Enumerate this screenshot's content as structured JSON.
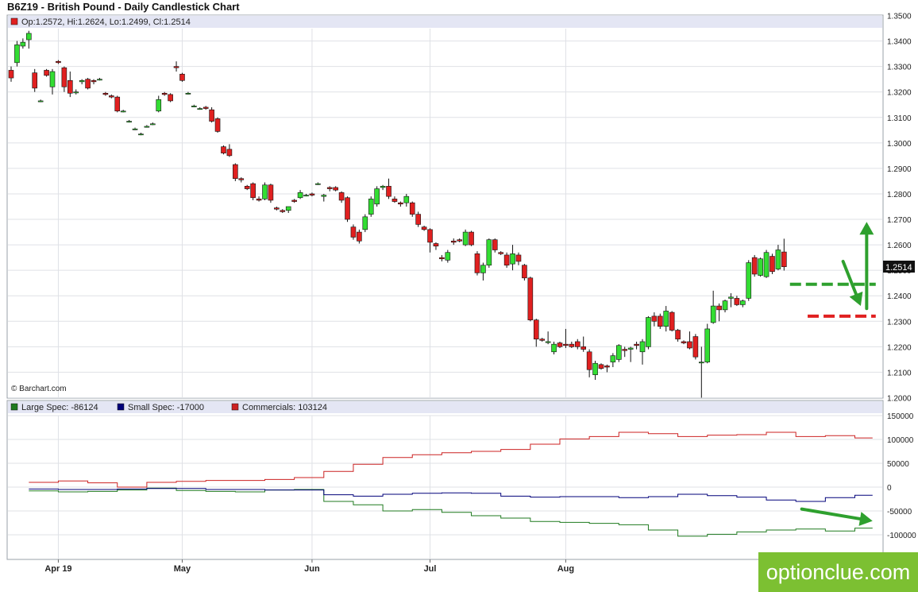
{
  "chart_title": "B6Z19 - British Pound - Daily Candlestick Chart",
  "watermark_text": "optionclue.com",
  "chart_data": [
    {
      "type": "candlestick",
      "title": "B6Z19 - British Pound - Daily Candlestick Chart",
      "ohlc_readout": "Op:1.2572, Hi:1.2624, Lo:1.2499, Cl:1.2514",
      "credit": "© Barchart.com",
      "last_price_label": "1.2514",
      "ylim": [
        1.2,
        1.35
      ],
      "y_ticks": [
        "1.2000",
        "1.2100",
        "1.2200",
        "1.2300",
        "1.2400",
        "1.2500",
        "1.2600",
        "1.2700",
        "1.2800",
        "1.2900",
        "1.3000",
        "1.3100",
        "1.3200",
        "1.3300",
        "1.3400",
        "1.3500"
      ],
      "x_ticks": [
        {
          "label": "Apr 19",
          "index": 8
        },
        {
          "label": "May",
          "index": 29
        },
        {
          "label": "Jun",
          "index": 51
        },
        {
          "label": "Jul",
          "index": 71
        },
        {
          "label": "Aug",
          "index": 94
        }
      ],
      "colors": {
        "up": "#33dd33",
        "down": "#e02020",
        "wick": "#111111"
      },
      "candles": [
        [
          1.3285,
          1.33,
          1.324,
          1.3255
        ],
        [
          1.3315,
          1.34,
          1.33,
          1.3385
        ],
        [
          1.338,
          1.341,
          1.337,
          1.3395
        ],
        [
          1.3405,
          1.344,
          1.337,
          1.343
        ],
        [
          1.3275,
          1.329,
          1.32,
          1.3215
        ],
        [
          1.3165,
          1.317,
          1.316,
          1.3165
        ],
        [
          1.3285,
          1.329,
          1.326,
          1.3265
        ],
        [
          1.322,
          1.329,
          1.319,
          1.328
        ],
        [
          1.332,
          1.3325,
          1.331,
          1.3315
        ],
        [
          1.3295,
          1.33,
          1.32,
          1.322
        ],
        [
          1.3245,
          1.328,
          1.318,
          1.3195
        ],
        [
          1.32,
          1.321,
          1.319,
          1.32
        ],
        [
          1.324,
          1.325,
          1.323,
          1.3245
        ],
        [
          1.325,
          1.3255,
          1.321,
          1.3215
        ],
        [
          1.3245,
          1.325,
          1.323,
          1.324
        ],
        [
          1.325,
          1.3255,
          1.3245,
          1.325
        ],
        [
          1.3195,
          1.32,
          1.3185,
          1.319
        ],
        [
          1.3185,
          1.319,
          1.3175,
          1.318
        ],
        [
          1.318,
          1.3185,
          1.312,
          1.3125
        ],
        [
          1.3125,
          1.313,
          1.312,
          1.3125
        ],
        [
          1.3085,
          1.309,
          1.308,
          1.3085
        ],
        [
          1.3055,
          1.306,
          1.305,
          1.3055
        ],
        [
          1.3035,
          1.304,
          1.303,
          1.3035
        ],
        [
          1.3065,
          1.307,
          1.306,
          1.3065
        ],
        [
          1.3075,
          1.308,
          1.307,
          1.3075
        ],
        [
          1.3125,
          1.3185,
          1.312,
          1.317
        ],
        [
          1.3195,
          1.32,
          1.3185,
          1.319
        ],
        [
          1.319,
          1.3195,
          1.316,
          1.3165
        ],
        [
          1.33,
          1.332,
          1.328,
          1.3295
        ],
        [
          1.327,
          1.3275,
          1.324,
          1.3245
        ],
        [
          1.3195,
          1.32,
          1.319,
          1.3195
        ],
        [
          1.3145,
          1.315,
          1.314,
          1.3145
        ],
        [
          1.3135,
          1.314,
          1.313,
          1.3135
        ],
        [
          1.314,
          1.3145,
          1.313,
          1.3135
        ],
        [
          1.313,
          1.314,
          1.308,
          1.3085
        ],
        [
          1.3095,
          1.31,
          1.304,
          1.3045
        ],
        [
          1.2985,
          1.299,
          1.2955,
          1.296
        ],
        [
          1.2975,
          1.2995,
          1.2945,
          1.295
        ],
        [
          1.2915,
          1.292,
          1.285,
          1.286
        ],
        [
          1.286,
          1.2865,
          1.2845,
          1.2855
        ],
        [
          1.283,
          1.2835,
          1.2815,
          1.282
        ],
        [
          1.284,
          1.2845,
          1.2775,
          1.2785
        ],
        [
          1.278,
          1.279,
          1.277,
          1.2775
        ],
        [
          1.278,
          1.2845,
          1.2775,
          1.2835
        ],
        [
          1.2835,
          1.284,
          1.2765,
          1.2775
        ],
        [
          1.2745,
          1.275,
          1.2735,
          1.274
        ],
        [
          1.2735,
          1.274,
          1.2725,
          1.273
        ],
        [
          1.2735,
          1.275,
          1.2725,
          1.275
        ],
        [
          1.2775,
          1.278,
          1.2765,
          1.277
        ],
        [
          1.2785,
          1.2815,
          1.278,
          1.2805
        ],
        [
          1.2795,
          1.28,
          1.279,
          1.2795
        ],
        [
          1.28,
          1.2805,
          1.279,
          1.2795
        ],
        [
          1.284,
          1.2845,
          1.2835,
          1.284
        ],
        [
          1.279,
          1.28,
          1.277,
          1.2795
        ],
        [
          1.2825,
          1.283,
          1.281,
          1.282
        ],
        [
          1.2825,
          1.283,
          1.281,
          1.2815
        ],
        [
          1.2805,
          1.281,
          1.2765,
          1.2775
        ],
        [
          1.2785,
          1.279,
          1.269,
          1.27
        ],
        [
          1.267,
          1.268,
          1.262,
          1.263
        ],
        [
          1.265,
          1.266,
          1.2605,
          1.2615
        ],
        [
          1.266,
          1.272,
          1.265,
          1.271
        ],
        [
          1.272,
          1.279,
          1.271,
          1.278
        ],
        [
          1.276,
          1.283,
          1.275,
          1.282
        ],
        [
          1.2825,
          1.2835,
          1.2815,
          1.283
        ],
        [
          1.283,
          1.286,
          1.278,
          1.279
        ],
        [
          1.278,
          1.279,
          1.2765,
          1.277
        ],
        [
          1.2765,
          1.277,
          1.275,
          1.276
        ],
        [
          1.2765,
          1.28,
          1.275,
          1.279
        ],
        [
          1.2765,
          1.277,
          1.271,
          1.272
        ],
        [
          1.272,
          1.273,
          1.267,
          1.268
        ],
        [
          1.267,
          1.2675,
          1.2655,
          1.266
        ],
        [
          1.266,
          1.2665,
          1.257,
          1.261
        ],
        [
          1.2605,
          1.261,
          1.258,
          1.2595
        ],
        [
          1.255,
          1.256,
          1.2535,
          1.2545
        ],
        [
          1.254,
          1.258,
          1.253,
          1.257
        ],
        [
          1.2615,
          1.2625,
          1.26,
          1.261
        ],
        [
          1.262,
          1.2625,
          1.261,
          1.2615
        ],
        [
          1.26,
          1.266,
          1.2595,
          1.265
        ],
        [
          1.265,
          1.2655,
          1.2595,
          1.26
        ],
        [
          1.2565,
          1.2575,
          1.248,
          1.249
        ],
        [
          1.249,
          1.253,
          1.246,
          1.252
        ],
        [
          1.252,
          1.2625,
          1.251,
          1.262
        ],
        [
          1.262,
          1.2625,
          1.257,
          1.258
        ],
        [
          1.257,
          1.2575,
          1.256,
          1.2565
        ],
        [
          1.256,
          1.257,
          1.251,
          1.252
        ],
        [
          1.2525,
          1.26,
          1.25,
          1.2565
        ],
        [
          1.256,
          1.257,
          1.252,
          1.2535
        ],
        [
          1.252,
          1.2525,
          1.246,
          1.247
        ],
        [
          1.247,
          1.2475,
          1.23,
          1.2305
        ],
        [
          1.2305,
          1.231,
          1.22,
          1.223
        ],
        [
          1.223,
          1.2235,
          1.222,
          1.2225
        ],
        [
          1.222,
          1.226,
          1.221,
          1.222
        ],
        [
          1.218,
          1.222,
          1.217,
          1.221
        ],
        [
          1.2215,
          1.222,
          1.2195,
          1.22
        ],
        [
          1.221,
          1.227,
          1.2195,
          1.2205
        ],
        [
          1.221,
          1.222,
          1.2195,
          1.22
        ],
        [
          1.222,
          1.223,
          1.219,
          1.22
        ],
        [
          1.22,
          1.224,
          1.218,
          1.219
        ],
        [
          1.218,
          1.219,
          1.208,
          1.211
        ],
        [
          1.209,
          1.2145,
          1.207,
          1.2135
        ],
        [
          1.213,
          1.2135,
          1.211,
          1.2115
        ],
        [
          1.2125,
          1.213,
          1.21,
          1.212
        ],
        [
          1.214,
          1.2175,
          1.212,
          1.2165
        ],
        [
          1.215,
          1.221,
          1.214,
          1.2205
        ],
        [
          1.219,
          1.22,
          1.216,
          1.2185
        ],
        [
          1.219,
          1.22,
          1.214,
          1.2195
        ],
        [
          1.221,
          1.222,
          1.219,
          1.2205
        ],
        [
          1.218,
          1.223,
          1.213,
          1.222
        ],
        [
          1.22,
          1.232,
          1.219,
          1.2315
        ],
        [
          1.232,
          1.2335,
          1.228,
          1.23
        ],
        [
          1.232,
          1.233,
          1.227,
          1.228
        ],
        [
          1.228,
          1.236,
          1.226,
          1.234
        ],
        [
          1.2335,
          1.234,
          1.226,
          1.2265
        ],
        [
          1.2265,
          1.227,
          1.222,
          1.223
        ],
        [
          1.222,
          1.2225,
          1.221,
          1.2215
        ],
        [
          1.222,
          1.226,
          1.219,
          1.2195
        ],
        [
          1.224,
          1.225,
          1.215,
          1.216
        ],
        [
          1.214,
          1.22,
          1.2,
          1.214
        ],
        [
          1.214,
          1.229,
          1.2135,
          1.227
        ],
        [
          1.2295,
          1.242,
          1.229,
          1.236
        ],
        [
          1.236,
          1.237,
          1.23,
          1.2345
        ],
        [
          1.2345,
          1.2385,
          1.2335,
          1.238
        ],
        [
          1.239,
          1.241,
          1.2355,
          1.2395
        ],
        [
          1.239,
          1.24,
          1.236,
          1.2365
        ],
        [
          1.2365,
          1.2385,
          1.2355,
          1.238
        ],
        [
          1.239,
          1.254,
          1.238,
          1.253
        ],
        [
          1.255,
          1.256,
          1.2475,
          1.2485
        ],
        [
          1.248,
          1.255,
          1.2475,
          1.2545
        ],
        [
          1.2475,
          1.258,
          1.247,
          1.257
        ],
        [
          1.2555,
          1.2565,
          1.2485,
          1.2495
        ],
        [
          1.2505,
          1.26,
          1.25,
          1.258
        ],
        [
          1.2572,
          1.2624,
          1.2499,
          1.2514
        ]
      ],
      "annotations": [
        {
          "type": "dashed-line",
          "color": "#2ea02e",
          "y": 1.2445,
          "from_index": 132,
          "to_index": 146
        },
        {
          "type": "dashed-line",
          "color": "#e02020",
          "y": 1.232,
          "from_index": 135,
          "to_index": 146
        },
        {
          "type": "arrow",
          "color": "#2ea02e",
          "from": [
            141,
            1.2535
          ],
          "to": [
            144,
            1.236
          ]
        },
        {
          "type": "arrow",
          "color": "#2ea02e",
          "from": [
            145,
            1.235
          ],
          "to": [
            145,
            1.269
          ]
        }
      ]
    },
    {
      "type": "line",
      "ylim": [
        -150000,
        150000
      ],
      "y_ticks": [
        "150000",
        "100000",
        "50000",
        "0",
        "-50000",
        "-100000"
      ],
      "legend": [
        {
          "label": "Large Spec: -86124",
          "color": "#1f7a1f"
        },
        {
          "label": "Small Spec: -17000",
          "color": "#00007a"
        },
        {
          "label": "Commercials: 103124",
          "color": "#cc2222"
        }
      ],
      "week_x_index": [
        3,
        8,
        13,
        18,
        23,
        28,
        33,
        38,
        43,
        48,
        53,
        58,
        63,
        68,
        73,
        78,
        83,
        88,
        93,
        98,
        103,
        108,
        113,
        118,
        123,
        128,
        133,
        138,
        143
      ],
      "end_index": 146,
      "series": [
        {
          "name": "Large Spec",
          "color": "#1f7a1f",
          "values": [
            -8000,
            -10000,
            -9000,
            -6000,
            -2000,
            -7000,
            -9000,
            -10000,
            -6000,
            -5000,
            -30000,
            -37000,
            -50000,
            -47000,
            -53000,
            -60000,
            -65000,
            -72000,
            -74000,
            -76000,
            -79000,
            -90000,
            -103000,
            -99000,
            -94000,
            -90000,
            -88000,
            -92000,
            -86124
          ]
        },
        {
          "name": "Small Spec",
          "color": "#00007a",
          "values": [
            -4000,
            -5000,
            -5000,
            -4000,
            -3000,
            -3000,
            -5000,
            -5000,
            -6000,
            -6000,
            -16000,
            -19000,
            -15000,
            -13000,
            -12000,
            -13000,
            -19000,
            -21000,
            -20000,
            -20000,
            -22000,
            -20000,
            -15000,
            -18000,
            -21000,
            -27000,
            -30000,
            -22000,
            -17000
          ]
        },
        {
          "name": "Commercials",
          "color": "#cc2222",
          "values": [
            10000,
            13000,
            9000,
            0,
            10000,
            12000,
            14000,
            14000,
            16000,
            20000,
            33000,
            48000,
            62000,
            68000,
            72000,
            75000,
            79000,
            90000,
            101000,
            106000,
            115000,
            112000,
            106000,
            109000,
            110000,
            115000,
            106000,
            108000,
            103124
          ]
        }
      ],
      "annotations": [
        {
          "type": "arrow",
          "color": "#2ea02e",
          "from": [
            134,
            -46000
          ],
          "to": [
            146,
            -71000
          ]
        }
      ]
    }
  ]
}
